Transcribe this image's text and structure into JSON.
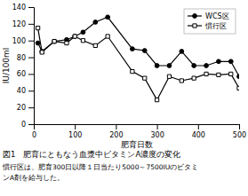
{
  "chart_data": {
    "type": "line",
    "xlabel": "肥育日数",
    "ylabel": "IU/100ml",
    "xlim": [
      0,
      500
    ],
    "ylim": [
      0,
      140
    ],
    "xticks": [
      0,
      100,
      200,
      300,
      400,
      500
    ],
    "yticks": [
      0,
      20,
      40,
      60,
      80,
      100,
      120,
      140
    ],
    "x": [
      10,
      20,
      50,
      80,
      100,
      120,
      150,
      180,
      240,
      270,
      300,
      330,
      360,
      390,
      420,
      450,
      480,
      500
    ],
    "series": [
      {
        "name": "WCS区",
        "color": "#000000",
        "marker": "circle",
        "values": [
          97,
          87,
          99,
          101,
          105,
          110,
          122,
          128,
          90,
          88,
          70,
          70,
          87,
          70,
          70,
          75,
          75,
          57
        ]
      },
      {
        "name": "慣行区",
        "color": "#000000",
        "marker": "square",
        "values": [
          115,
          86,
          99,
          97,
          105,
          100,
          94,
          105,
          63,
          55,
          29,
          57,
          52,
          55,
          60,
          59,
          60,
          43
        ]
      }
    ],
    "legend": "upper right",
    "annotations": [
      "図1　肥育にともなう血漿中ビタミンA濃度の変化",
      "慣行区は、肥育300日以降１日当たり5000～7500IUのビタミ",
      "ンA剤を給与した。"
    ]
  }
}
